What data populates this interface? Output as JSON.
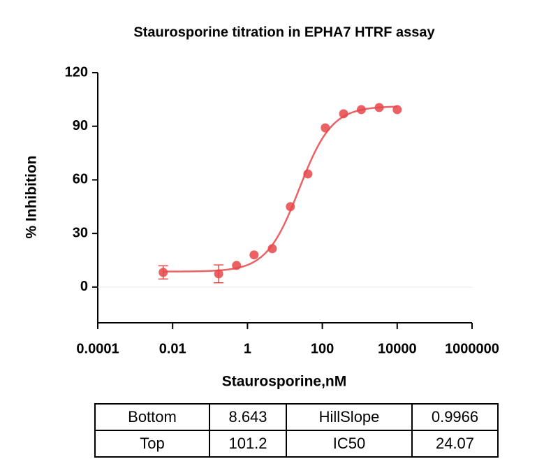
{
  "chart_data": {
    "type": "scatter",
    "title": "Staurosporine titration in EPHA7 HTRF assay",
    "xlabel": "Staurosporine,nM",
    "ylabel": "% Inhibition",
    "x": [
      0.0056,
      0.17,
      0.51,
      1.5,
      4.6,
      14,
      41,
      120,
      370,
      1100,
      3300,
      10000
    ],
    "values": [
      8.2,
      7.4,
      12.1,
      18,
      21.5,
      45,
      63.3,
      89.1,
      97,
      99.3,
      100.5,
      99.3
    ],
    "errors": [
      3.7,
      5,
      null,
      null,
      null,
      null,
      null,
      null,
      null,
      null,
      null,
      null
    ],
    "color": "#e8474a",
    "xscale": "log",
    "xlim": [
      0.0001,
      1000000
    ],
    "xticks": [
      0.0001,
      0.01,
      1,
      100,
      10000,
      1000000
    ],
    "ylim": [
      -20,
      120
    ],
    "yticks": [
      0,
      30,
      60,
      90,
      120
    ]
  },
  "table": {
    "rows": [
      [
        "Bottom",
        "8.643",
        "HillSlope",
        "0.9966"
      ],
      [
        "Top",
        "101.2",
        "IC50",
        "24.07"
      ]
    ]
  }
}
